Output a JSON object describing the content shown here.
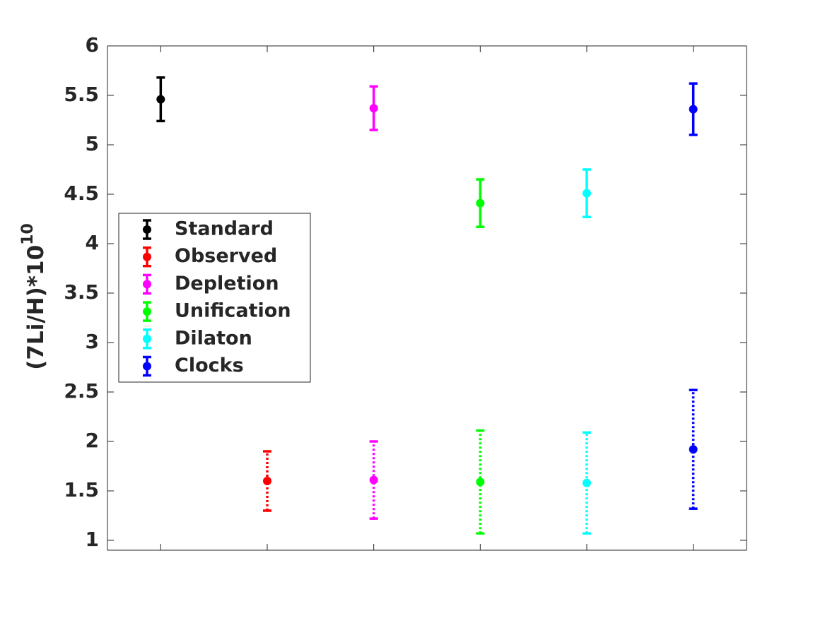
{
  "chart_data": {
    "type": "errorbar",
    "ylabel": "(7Li/H)*10",
    "ylabel_exponent": "10",
    "xlim": [
      0.5,
      6.5
    ],
    "xticks": [
      1,
      2,
      3,
      4,
      5,
      6
    ],
    "ylim": [
      0.9,
      6
    ],
    "yticks": [
      1,
      1.5,
      2,
      2.5,
      3,
      3.5,
      4,
      4.5,
      5,
      5.5,
      6
    ],
    "legend": "middle-left",
    "series": [
      {
        "name": "Standard",
        "color": "#000000",
        "x": [
          1
        ],
        "values": [
          5.46
        ],
        "errors": [
          0.22
        ],
        "line_styles": [
          "solid"
        ]
      },
      {
        "name": "Observed",
        "color": "#ff0000",
        "x": [
          2
        ],
        "values": [
          1.6
        ],
        "errors": [
          0.3
        ],
        "line_styles": [
          "dotted"
        ]
      },
      {
        "name": "Depletion",
        "color": "#ff00ff",
        "x": [
          3,
          3
        ],
        "values": [
          5.37,
          1.61
        ],
        "errors": [
          0.22,
          0.39
        ],
        "line_styles": [
          "solid",
          "dotted"
        ]
      },
      {
        "name": "Unification",
        "color": "#00ff00",
        "x": [
          4,
          4
        ],
        "values": [
          4.41,
          1.59
        ],
        "errors": [
          0.24,
          0.52
        ],
        "line_styles": [
          "solid",
          "dotted"
        ]
      },
      {
        "name": "Dilaton",
        "color": "#00ffff",
        "x": [
          5,
          5
        ],
        "values": [
          4.51,
          1.58
        ],
        "errors": [
          0.24,
          0.51
        ],
        "line_styles": [
          "solid",
          "dotted"
        ]
      },
      {
        "name": "Clocks",
        "color": "#0000ff",
        "x": [
          6,
          6
        ],
        "values": [
          5.36,
          1.92
        ],
        "errors": [
          0.26,
          0.6
        ],
        "line_styles": [
          "solid",
          "dotted"
        ]
      }
    ]
  }
}
